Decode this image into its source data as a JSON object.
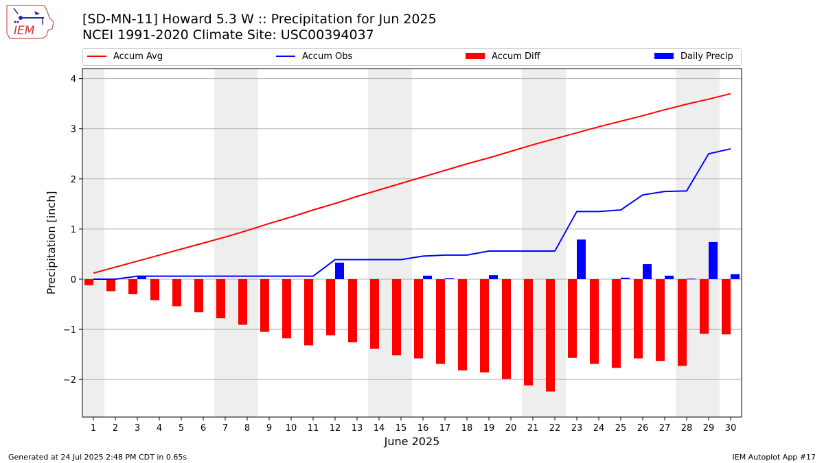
{
  "logo": {
    "text": "IEM"
  },
  "header": {
    "title_line1": "[SD-MN-11] Howard 5.3 W :: Precipitation for Jun 2025",
    "title_line2": "NCEI 1991-2020 Climate Site: USC00394037"
  },
  "footer": {
    "generated": "Generated at 24 Jul 2025 2:48 PM CDT in 0.65s",
    "app": "IEM Autoplot App #17"
  },
  "colors": {
    "accum_avg": "#ff0000",
    "accum_obs": "#0000ff",
    "accum_diff": "#ff0000",
    "daily_precip": "#0000ff",
    "weekend_shade": "#eeeeee",
    "grid": "#b0b0b0"
  },
  "chart_data": {
    "type": "bar",
    "title": "[SD-MN-11] Howard 5.3 W :: Precipitation for Jun 2025",
    "subtitle": "NCEI 1991-2020 Climate Site: USC00394037",
    "xlabel": "June 2025",
    "ylabel": "Precipitation [inch]",
    "ylim": [
      -2.75,
      4.2
    ],
    "yticks": [
      4,
      3,
      2,
      1,
      0,
      -1,
      -2
    ],
    "ytick_labels": [
      "4",
      "3",
      "2",
      "1",
      "0",
      "−1",
      "−2"
    ],
    "grid": "horizontal",
    "legend_position": "top",
    "x": [
      "1",
      "2",
      "3",
      "4",
      "5",
      "6",
      "7",
      "8",
      "9",
      "10",
      "11",
      "12",
      "13",
      "14",
      "15",
      "16",
      "17",
      "18",
      "19",
      "20",
      "21",
      "22",
      "23",
      "24",
      "25",
      "26",
      "27",
      "28",
      "29",
      "30"
    ],
    "shaded_days": [
      1,
      7,
      8,
      14,
      15,
      21,
      22,
      28,
      29
    ],
    "series": [
      {
        "name": "Accum Avg",
        "kind": "line",
        "values": [
          0.12,
          0.24,
          0.36,
          0.48,
          0.6,
          0.72,
          0.84,
          0.97,
          1.11,
          1.24,
          1.38,
          1.51,
          1.65,
          1.78,
          1.91,
          2.04,
          2.17,
          2.3,
          2.42,
          2.55,
          2.68,
          2.8,
          2.92,
          3.04,
          3.15,
          3.26,
          3.38,
          3.49,
          3.59,
          3.7
        ]
      },
      {
        "name": "Accum Obs",
        "kind": "line",
        "values": [
          0.0,
          0.0,
          0.06,
          0.06,
          0.06,
          0.06,
          0.06,
          0.06,
          0.06,
          0.06,
          0.06,
          0.39,
          0.39,
          0.39,
          0.39,
          0.46,
          0.48,
          0.48,
          0.56,
          0.56,
          0.56,
          0.56,
          1.35,
          1.35,
          1.38,
          1.68,
          1.75,
          1.76,
          2.5,
          2.6
        ]
      },
      {
        "name": "Accum Diff",
        "kind": "bar",
        "values": [
          -0.12,
          -0.24,
          -0.3,
          -0.42,
          -0.54,
          -0.66,
          -0.78,
          -0.91,
          -1.05,
          -1.18,
          -1.32,
          -1.12,
          -1.26,
          -1.39,
          -1.52,
          -1.58,
          -1.69,
          -1.82,
          -1.86,
          -1.99,
          -2.12,
          -2.24,
          -1.57,
          -1.69,
          -1.77,
          -1.58,
          -1.63,
          -1.73,
          -1.09,
          -1.1
        ]
      },
      {
        "name": "Daily Precip",
        "kind": "bar",
        "values": [
          0.0,
          0.0,
          0.06,
          0.0,
          0.0,
          0.0,
          0.0,
          0.0,
          0.0,
          0.0,
          0.0,
          0.33,
          0.0,
          0.0,
          0.0,
          0.07,
          0.02,
          0.0,
          0.08,
          0.0,
          0.0,
          0.0,
          0.79,
          0.0,
          0.03,
          0.3,
          0.07,
          0.01,
          0.74,
          0.1
        ]
      }
    ]
  }
}
